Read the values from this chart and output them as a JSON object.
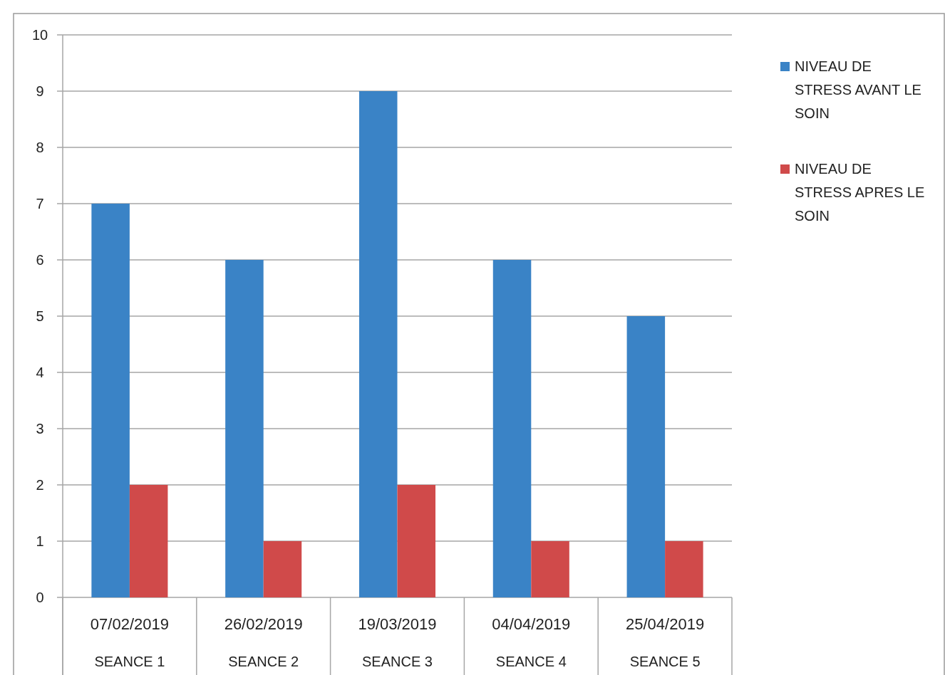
{
  "chart_data": {
    "type": "bar",
    "categories": [
      "07/02/2019\nSEANCE 1",
      "26/02/2019\nSEANCE 2",
      "19/03/2019\nSEANCE 3",
      "04/04/2019\nSEANCE 4",
      "25/04/2019\nSEANCE 5"
    ],
    "series": [
      {
        "name": "NIVEAU DE STRESS AVANT LE SOIN",
        "color": "#3a83c6",
        "values": [
          7,
          6,
          9,
          6,
          5
        ]
      },
      {
        "name": "NIVEAU DE STRESS APRES LE SOIN",
        "color": "#d04a4a",
        "values": [
          2,
          1,
          2,
          1,
          1
        ]
      }
    ],
    "ylim": [
      0,
      10
    ],
    "yticks": [
      0,
      1,
      2,
      3,
      4,
      5,
      6,
      7,
      8,
      9,
      10
    ],
    "grid": "y",
    "legend": "right"
  }
}
